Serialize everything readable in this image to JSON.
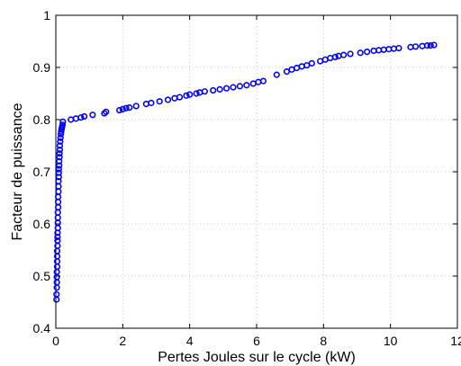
{
  "chart_data": {
    "type": "scatter",
    "title": "",
    "xlabel": "Pertes Joules sur le cycle (kW)",
    "ylabel": "Facteur de puissance",
    "xlim": [
      0,
      12
    ],
    "ylim": [
      0.4,
      1.0
    ],
    "xticks": [
      0,
      2,
      4,
      6,
      8,
      10,
      12
    ],
    "yticks": [
      0.4,
      0.5,
      0.6,
      0.7,
      0.8,
      0.9,
      1.0
    ],
    "xtick_labels": [
      "0",
      "2",
      "4",
      "6",
      "8",
      "10",
      "12"
    ],
    "ytick_labels": [
      "0.4",
      "0.5",
      "0.6",
      "0.7",
      "0.8",
      "0.9",
      "1"
    ],
    "grid": true,
    "marker": "circle",
    "color": "#0000ff",
    "series": [
      {
        "x": [
          0.02,
          0.02,
          0.03,
          0.03,
          0.03,
          0.03,
          0.04,
          0.04,
          0.04,
          0.04,
          0.05,
          0.05,
          0.05,
          0.05,
          0.06,
          0.06,
          0.06,
          0.06,
          0.07,
          0.07,
          0.07,
          0.08,
          0.08,
          0.08,
          0.09,
          0.09,
          0.09,
          0.1,
          0.1,
          0.11,
          0.11,
          0.12,
          0.12,
          0.13,
          0.14,
          0.15,
          0.16,
          0.17,
          0.18,
          0.19,
          0.2,
          0.21,
          0.45,
          0.6,
          0.75,
          0.85,
          1.1,
          1.45,
          1.5,
          1.9,
          2.0,
          2.1,
          2.2,
          2.4,
          2.7,
          2.85,
          3.1,
          3.35,
          3.55,
          3.7,
          3.9,
          4.0,
          4.2,
          4.3,
          4.45,
          4.7,
          4.9,
          5.1,
          5.3,
          5.5,
          5.7,
          5.9,
          6.05,
          6.2,
          6.6,
          6.9,
          7.05,
          7.2,
          7.35,
          7.5,
          7.65,
          7.9,
          8.05,
          8.2,
          8.35,
          8.45,
          8.6,
          8.8,
          9.1,
          9.3,
          9.5,
          9.65,
          9.8,
          9.95,
          10.1,
          10.25,
          10.6,
          10.75,
          10.95,
          11.1,
          11.2,
          11.3
        ],
        "y": [
          0.455,
          0.465,
          0.478,
          0.488,
          0.498,
          0.508,
          0.518,
          0.528,
          0.538,
          0.548,
          0.558,
          0.568,
          0.575,
          0.583,
          0.592,
          0.602,
          0.612,
          0.622,
          0.632,
          0.642,
          0.652,
          0.662,
          0.672,
          0.682,
          0.69,
          0.698,
          0.705,
          0.712,
          0.72,
          0.728,
          0.735,
          0.742,
          0.75,
          0.758,
          0.765,
          0.772,
          0.777,
          0.781,
          0.784,
          0.787,
          0.79,
          0.796,
          0.8,
          0.802,
          0.804,
          0.806,
          0.809,
          0.812,
          0.815,
          0.818,
          0.82,
          0.822,
          0.823,
          0.826,
          0.83,
          0.832,
          0.835,
          0.838,
          0.841,
          0.843,
          0.846,
          0.848,
          0.85,
          0.852,
          0.854,
          0.856,
          0.858,
          0.86,
          0.862,
          0.864,
          0.866,
          0.869,
          0.872,
          0.874,
          0.886,
          0.892,
          0.896,
          0.899,
          0.902,
          0.904,
          0.908,
          0.912,
          0.915,
          0.918,
          0.92,
          0.922,
          0.924,
          0.926,
          0.928,
          0.93,
          0.932,
          0.933,
          0.934,
          0.935,
          0.936,
          0.937,
          0.939,
          0.94,
          0.941,
          0.942,
          0.942,
          0.943
        ]
      }
    ]
  }
}
